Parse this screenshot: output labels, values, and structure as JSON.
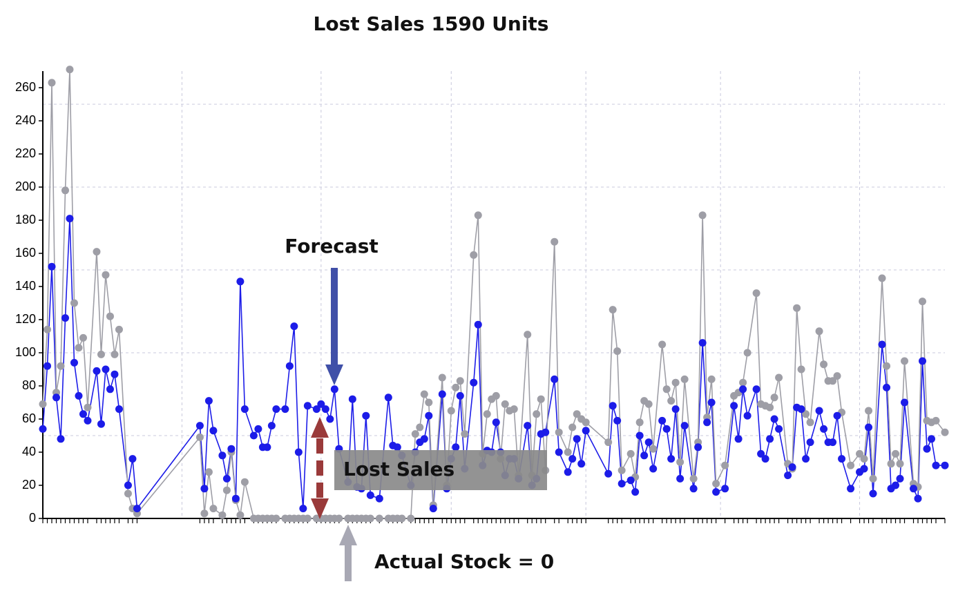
{
  "chart_data": {
    "type": "line",
    "title": "Lost Sales 1590 Units",
    "annotations": [
      "Forecast",
      "Lost Sales",
      "Actual Stock = 0"
    ],
    "x": [
      0,
      1,
      2,
      3,
      4,
      5,
      6,
      7,
      8,
      9,
      10,
      12,
      13,
      14,
      15,
      16,
      17,
      19,
      20,
      21,
      35,
      36,
      37,
      38,
      40,
      41,
      42,
      43,
      44,
      45,
      47,
      48,
      49,
      50,
      51,
      52,
      54,
      55,
      56,
      57,
      58,
      59,
      61,
      62,
      63,
      64,
      65,
      66,
      68,
      69,
      70,
      71,
      72,
      73,
      75,
      77,
      78,
      79,
      80,
      82,
      83,
      84,
      85,
      86,
      87,
      89,
      90,
      91,
      92,
      93,
      94,
      96,
      97,
      98,
      99,
      100,
      101,
      102,
      103,
      104,
      105,
      106,
      108,
      109,
      110,
      111,
      112,
      114,
      115,
      117,
      118,
      119,
      120,
      121,
      126,
      127,
      128,
      129,
      131,
      132,
      133,
      134,
      135,
      136,
      138,
      139,
      140,
      141,
      142,
      143,
      145,
      146,
      147,
      148,
      149,
      150,
      152,
      154,
      155,
      156,
      157,
      159,
      160,
      161,
      162,
      163,
      164,
      166,
      167,
      168,
      169,
      170,
      171,
      173,
      174,
      175,
      176,
      177,
      178,
      180,
      182,
      183,
      184,
      185,
      187,
      188,
      189,
      190,
      191,
      192,
      194,
      195,
      196,
      197,
      198,
      199,
      201
    ],
    "series": [
      {
        "color": "#1c1ce8",
        "values": [
          54,
          92,
          152,
          73,
          48,
          121,
          181,
          94,
          74,
          63,
          59,
          89,
          57,
          90,
          78,
          87,
          66,
          20,
          36,
          6,
          56,
          18,
          71,
          53,
          38,
          24,
          42,
          12,
          143,
          66,
          50,
          54,
          43,
          43,
          56,
          66,
          66,
          92,
          116,
          40,
          6,
          68,
          66,
          69,
          66,
          60,
          78,
          42,
          22,
          72,
          19,
          18,
          62,
          14,
          12,
          73,
          44,
          43,
          38,
          20,
          40,
          46,
          48,
          62,
          6,
          75,
          18,
          36,
          43,
          74,
          30,
          82,
          117,
          32,
          41,
          40,
          58,
          40,
          26,
          36,
          36,
          24,
          56,
          20,
          24,
          51,
          52,
          84,
          40,
          28,
          36,
          48,
          33,
          53,
          27,
          68,
          59,
          21,
          23,
          16,
          50,
          38,
          46,
          30,
          59,
          54,
          36,
          66,
          24,
          56,
          18,
          43,
          106,
          58,
          70,
          16,
          18,
          68,
          48,
          78,
          62,
          78,
          39,
          36,
          48,
          60,
          54,
          26,
          31,
          67,
          66,
          36,
          46,
          65,
          54,
          46,
          46,
          62,
          36,
          18,
          28,
          30,
          55,
          15,
          105,
          79,
          18,
          20,
          24,
          70,
          18,
          12,
          95,
          42,
          48,
          32,
          32
        ]
      },
      {
        "color": "#9e9ea6",
        "values": [
          69,
          114,
          263,
          76,
          92,
          198,
          271,
          130,
          103,
          109,
          67,
          161,
          99,
          147,
          122,
          99,
          114,
          15,
          6,
          3,
          49,
          3,
          28,
          6,
          2,
          17,
          40,
          11,
          2,
          22,
          0,
          0,
          0,
          0,
          0,
          0,
          0,
          0,
          0,
          0,
          0,
          0,
          0,
          0,
          0,
          0,
          0,
          0,
          0,
          0,
          0,
          0,
          0,
          0,
          0,
          0,
          0,
          0,
          0,
          0,
          51,
          55,
          75,
          70,
          8,
          85,
          20,
          65,
          79,
          83,
          51,
          159,
          183,
          39,
          63,
          72,
          74,
          36,
          69,
          65,
          66,
          26,
          111,
          26,
          63,
          72,
          29,
          167,
          52,
          40,
          55,
          63,
          60,
          58,
          46,
          126,
          101,
          29,
          39,
          25,
          58,
          71,
          69,
          42,
          105,
          78,
          71,
          82,
          34,
          84,
          24,
          46,
          183,
          61,
          84,
          21,
          32,
          74,
          76,
          82,
          100,
          136,
          69,
          68,
          67,
          73,
          85,
          33,
          30,
          127,
          90,
          63,
          58,
          113,
          93,
          83,
          83,
          86,
          64,
          32,
          39,
          36,
          65,
          24,
          145,
          92,
          33,
          39,
          33,
          95,
          21,
          19,
          131,
          59,
          58,
          59,
          52
        ]
      }
    ],
    "xlim": [
      0,
      201
    ],
    "xticks": [
      31,
      62,
      91,
      121,
      151,
      182
    ],
    "ylim": [
      0,
      270
    ],
    "yticks": [
      0,
      20,
      40,
      60,
      80,
      100,
      120,
      140,
      160,
      180,
      200,
      220,
      240,
      260
    ],
    "grid_y": [
      50,
      100,
      150,
      200,
      250
    ],
    "grid": true
  }
}
